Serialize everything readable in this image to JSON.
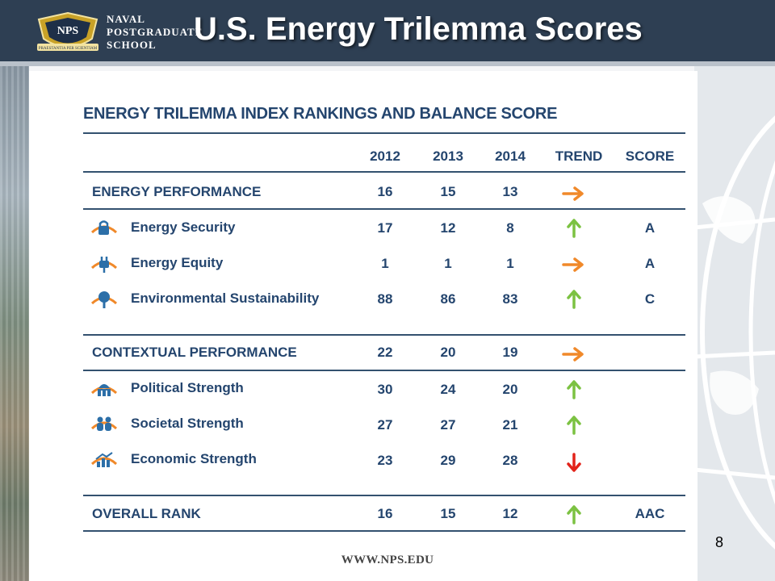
{
  "header": {
    "logo_badge": "NPS",
    "logo_motto": "PRAESTANTIA PER SCIENTIAM",
    "logo_lines": [
      "NAVAL",
      "POSTGRADUATE",
      "SCHOOL"
    ],
    "title": "U.S. Energy Trilemma Scores"
  },
  "table": {
    "title": "ENERGY TRILEMMA INDEX RANKINGS AND BALANCE SCORE",
    "columns": [
      "2012",
      "2013",
      "2014",
      "TREND",
      "SCORE"
    ],
    "rows": [
      {
        "label": "ENERGY PERFORMANCE",
        "v2012": "16",
        "v2013": "15",
        "v2014": "13",
        "trend": "right",
        "score": ""
      },
      {
        "label": "Energy Security",
        "icon": "lock-icon",
        "v2012": "17",
        "v2013": "12",
        "v2014": "8",
        "trend": "up",
        "score": "A"
      },
      {
        "label": "Energy Equity",
        "icon": "plug-icon",
        "v2012": "1",
        "v2013": "1",
        "v2014": "1",
        "trend": "right",
        "score": "A"
      },
      {
        "label": "Environmental Sustainability",
        "icon": "tree-icon",
        "v2012": "88",
        "v2013": "86",
        "v2014": "83",
        "trend": "up",
        "score": "C"
      },
      {
        "label": "CONTEXTUAL PERFORMANCE",
        "v2012": "22",
        "v2013": "20",
        "v2014": "19",
        "trend": "right",
        "score": ""
      },
      {
        "label": "Political Strength",
        "icon": "capitol-icon",
        "v2012": "30",
        "v2013": "24",
        "v2014": "20",
        "trend": "up",
        "score": ""
      },
      {
        "label": "Societal Strength",
        "icon": "people-icon",
        "v2012": "27",
        "v2013": "27",
        "v2014": "21",
        "trend": "up",
        "score": ""
      },
      {
        "label": "Economic Strength",
        "icon": "bar-chart-icon",
        "v2012": "23",
        "v2013": "29",
        "v2014": "28",
        "trend": "down",
        "score": ""
      },
      {
        "label": "OVERALL RANK",
        "v2012": "16",
        "v2013": "15",
        "v2014": "12",
        "trend": "up",
        "score": "AAC"
      }
    ]
  },
  "colors": {
    "navy": "#24456e",
    "arrow_up": "#7cc242",
    "arrow_right": "#f0892a",
    "arrow_down": "#e2231a",
    "icon_blue": "#2c6fa8",
    "icon_orange": "#f0892a"
  },
  "footer": {
    "page_number": "8",
    "url": "WWW.NPS.EDU"
  }
}
